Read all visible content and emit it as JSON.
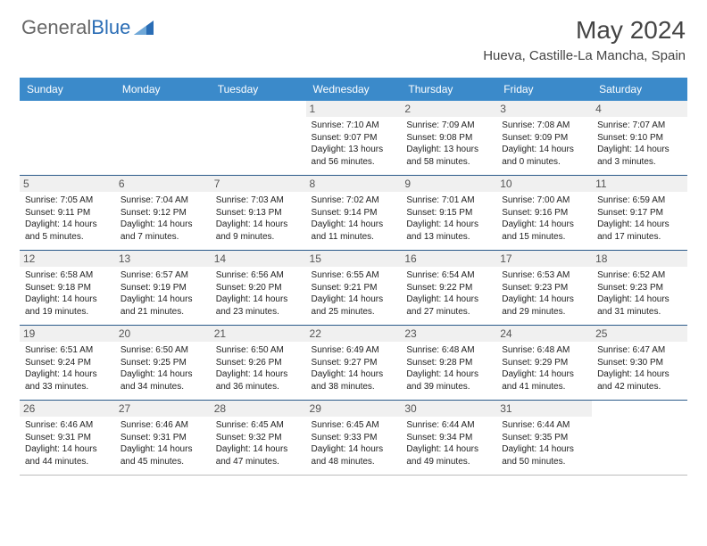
{
  "brand": {
    "name_gray": "General",
    "name_blue": "Blue"
  },
  "title": "May 2024",
  "location": "Hueva, Castille-La Mancha, Spain",
  "colors": {
    "header_bg": "#3b8aca",
    "header_text": "#ffffff",
    "cell_border": "#2b5a8a",
    "daynum_bg": "#f0f0f0",
    "daynum_text": "#555555",
    "body_text": "#222222",
    "title_text": "#444444",
    "brand_gray": "#666666",
    "brand_blue": "#2a6db5"
  },
  "typography": {
    "title_fontsize": 28,
    "location_fontsize": 15,
    "dayheader_fontsize": 12,
    "daynum_fontsize": 12,
    "body_fontsize": 10
  },
  "weekdays": [
    "Sunday",
    "Monday",
    "Tuesday",
    "Wednesday",
    "Thursday",
    "Friday",
    "Saturday"
  ],
  "weeks": [
    [
      {
        "empty": true
      },
      {
        "empty": true
      },
      {
        "empty": true
      },
      {
        "num": "1",
        "sunrise": "Sunrise: 7:10 AM",
        "sunset": "Sunset: 9:07 PM",
        "daylight": "Daylight: 13 hours and 56 minutes."
      },
      {
        "num": "2",
        "sunrise": "Sunrise: 7:09 AM",
        "sunset": "Sunset: 9:08 PM",
        "daylight": "Daylight: 13 hours and 58 minutes."
      },
      {
        "num": "3",
        "sunrise": "Sunrise: 7:08 AM",
        "sunset": "Sunset: 9:09 PM",
        "daylight": "Daylight: 14 hours and 0 minutes."
      },
      {
        "num": "4",
        "sunrise": "Sunrise: 7:07 AM",
        "sunset": "Sunset: 9:10 PM",
        "daylight": "Daylight: 14 hours and 3 minutes."
      }
    ],
    [
      {
        "num": "5",
        "sunrise": "Sunrise: 7:05 AM",
        "sunset": "Sunset: 9:11 PM",
        "daylight": "Daylight: 14 hours and 5 minutes."
      },
      {
        "num": "6",
        "sunrise": "Sunrise: 7:04 AM",
        "sunset": "Sunset: 9:12 PM",
        "daylight": "Daylight: 14 hours and 7 minutes."
      },
      {
        "num": "7",
        "sunrise": "Sunrise: 7:03 AM",
        "sunset": "Sunset: 9:13 PM",
        "daylight": "Daylight: 14 hours and 9 minutes."
      },
      {
        "num": "8",
        "sunrise": "Sunrise: 7:02 AM",
        "sunset": "Sunset: 9:14 PM",
        "daylight": "Daylight: 14 hours and 11 minutes."
      },
      {
        "num": "9",
        "sunrise": "Sunrise: 7:01 AM",
        "sunset": "Sunset: 9:15 PM",
        "daylight": "Daylight: 14 hours and 13 minutes."
      },
      {
        "num": "10",
        "sunrise": "Sunrise: 7:00 AM",
        "sunset": "Sunset: 9:16 PM",
        "daylight": "Daylight: 14 hours and 15 minutes."
      },
      {
        "num": "11",
        "sunrise": "Sunrise: 6:59 AM",
        "sunset": "Sunset: 9:17 PM",
        "daylight": "Daylight: 14 hours and 17 minutes."
      }
    ],
    [
      {
        "num": "12",
        "sunrise": "Sunrise: 6:58 AM",
        "sunset": "Sunset: 9:18 PM",
        "daylight": "Daylight: 14 hours and 19 minutes."
      },
      {
        "num": "13",
        "sunrise": "Sunrise: 6:57 AM",
        "sunset": "Sunset: 9:19 PM",
        "daylight": "Daylight: 14 hours and 21 minutes."
      },
      {
        "num": "14",
        "sunrise": "Sunrise: 6:56 AM",
        "sunset": "Sunset: 9:20 PM",
        "daylight": "Daylight: 14 hours and 23 minutes."
      },
      {
        "num": "15",
        "sunrise": "Sunrise: 6:55 AM",
        "sunset": "Sunset: 9:21 PM",
        "daylight": "Daylight: 14 hours and 25 minutes."
      },
      {
        "num": "16",
        "sunrise": "Sunrise: 6:54 AM",
        "sunset": "Sunset: 9:22 PM",
        "daylight": "Daylight: 14 hours and 27 minutes."
      },
      {
        "num": "17",
        "sunrise": "Sunrise: 6:53 AM",
        "sunset": "Sunset: 9:23 PM",
        "daylight": "Daylight: 14 hours and 29 minutes."
      },
      {
        "num": "18",
        "sunrise": "Sunrise: 6:52 AM",
        "sunset": "Sunset: 9:23 PM",
        "daylight": "Daylight: 14 hours and 31 minutes."
      }
    ],
    [
      {
        "num": "19",
        "sunrise": "Sunrise: 6:51 AM",
        "sunset": "Sunset: 9:24 PM",
        "daylight": "Daylight: 14 hours and 33 minutes."
      },
      {
        "num": "20",
        "sunrise": "Sunrise: 6:50 AM",
        "sunset": "Sunset: 9:25 PM",
        "daylight": "Daylight: 14 hours and 34 minutes."
      },
      {
        "num": "21",
        "sunrise": "Sunrise: 6:50 AM",
        "sunset": "Sunset: 9:26 PM",
        "daylight": "Daylight: 14 hours and 36 minutes."
      },
      {
        "num": "22",
        "sunrise": "Sunrise: 6:49 AM",
        "sunset": "Sunset: 9:27 PM",
        "daylight": "Daylight: 14 hours and 38 minutes."
      },
      {
        "num": "23",
        "sunrise": "Sunrise: 6:48 AM",
        "sunset": "Sunset: 9:28 PM",
        "daylight": "Daylight: 14 hours and 39 minutes."
      },
      {
        "num": "24",
        "sunrise": "Sunrise: 6:48 AM",
        "sunset": "Sunset: 9:29 PM",
        "daylight": "Daylight: 14 hours and 41 minutes."
      },
      {
        "num": "25",
        "sunrise": "Sunrise: 6:47 AM",
        "sunset": "Sunset: 9:30 PM",
        "daylight": "Daylight: 14 hours and 42 minutes."
      }
    ],
    [
      {
        "num": "26",
        "sunrise": "Sunrise: 6:46 AM",
        "sunset": "Sunset: 9:31 PM",
        "daylight": "Daylight: 14 hours and 44 minutes."
      },
      {
        "num": "27",
        "sunrise": "Sunrise: 6:46 AM",
        "sunset": "Sunset: 9:31 PM",
        "daylight": "Daylight: 14 hours and 45 minutes."
      },
      {
        "num": "28",
        "sunrise": "Sunrise: 6:45 AM",
        "sunset": "Sunset: 9:32 PM",
        "daylight": "Daylight: 14 hours and 47 minutes."
      },
      {
        "num": "29",
        "sunrise": "Sunrise: 6:45 AM",
        "sunset": "Sunset: 9:33 PM",
        "daylight": "Daylight: 14 hours and 48 minutes."
      },
      {
        "num": "30",
        "sunrise": "Sunrise: 6:44 AM",
        "sunset": "Sunset: 9:34 PM",
        "daylight": "Daylight: 14 hours and 49 minutes."
      },
      {
        "num": "31",
        "sunrise": "Sunrise: 6:44 AM",
        "sunset": "Sunset: 9:35 PM",
        "daylight": "Daylight: 14 hours and 50 minutes."
      },
      {
        "empty": true
      }
    ]
  ]
}
